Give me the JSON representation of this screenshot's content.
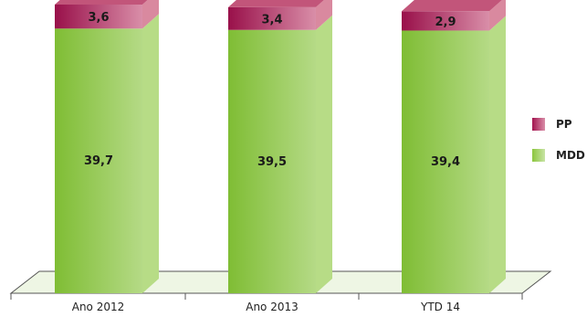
{
  "chart_data": {
    "type": "bar",
    "stacked": true,
    "categories": [
      "Ano 2012",
      "Ano 2013",
      "YTD 14"
    ],
    "series": [
      {
        "name": "MDD",
        "values": [
          39.7,
          39.5,
          39.4
        ],
        "labels": [
          "39,7",
          "39,5",
          "39,4"
        ],
        "color": "#8cc63e"
      },
      {
        "name": "PP",
        "values": [
          3.6,
          3.4,
          2.9
        ],
        "labels": [
          "3,6",
          "3,4",
          "2,9"
        ],
        "color": "#a3144f"
      }
    ],
    "ylim": [
      0,
      43.3
    ],
    "grid": false,
    "legend_position": "right"
  },
  "colors": {
    "mdd_front": "#8cc63e",
    "mdd_side": "#b7dc86",
    "pp_front": "#a3144f",
    "pp_top": "#c2557a",
    "floor": "#eef6e4",
    "axis": "#555555"
  },
  "legend": [
    {
      "label": "PP",
      "color": "#a3144f"
    },
    {
      "label": "MDD",
      "color": "#8cc63e"
    }
  ]
}
